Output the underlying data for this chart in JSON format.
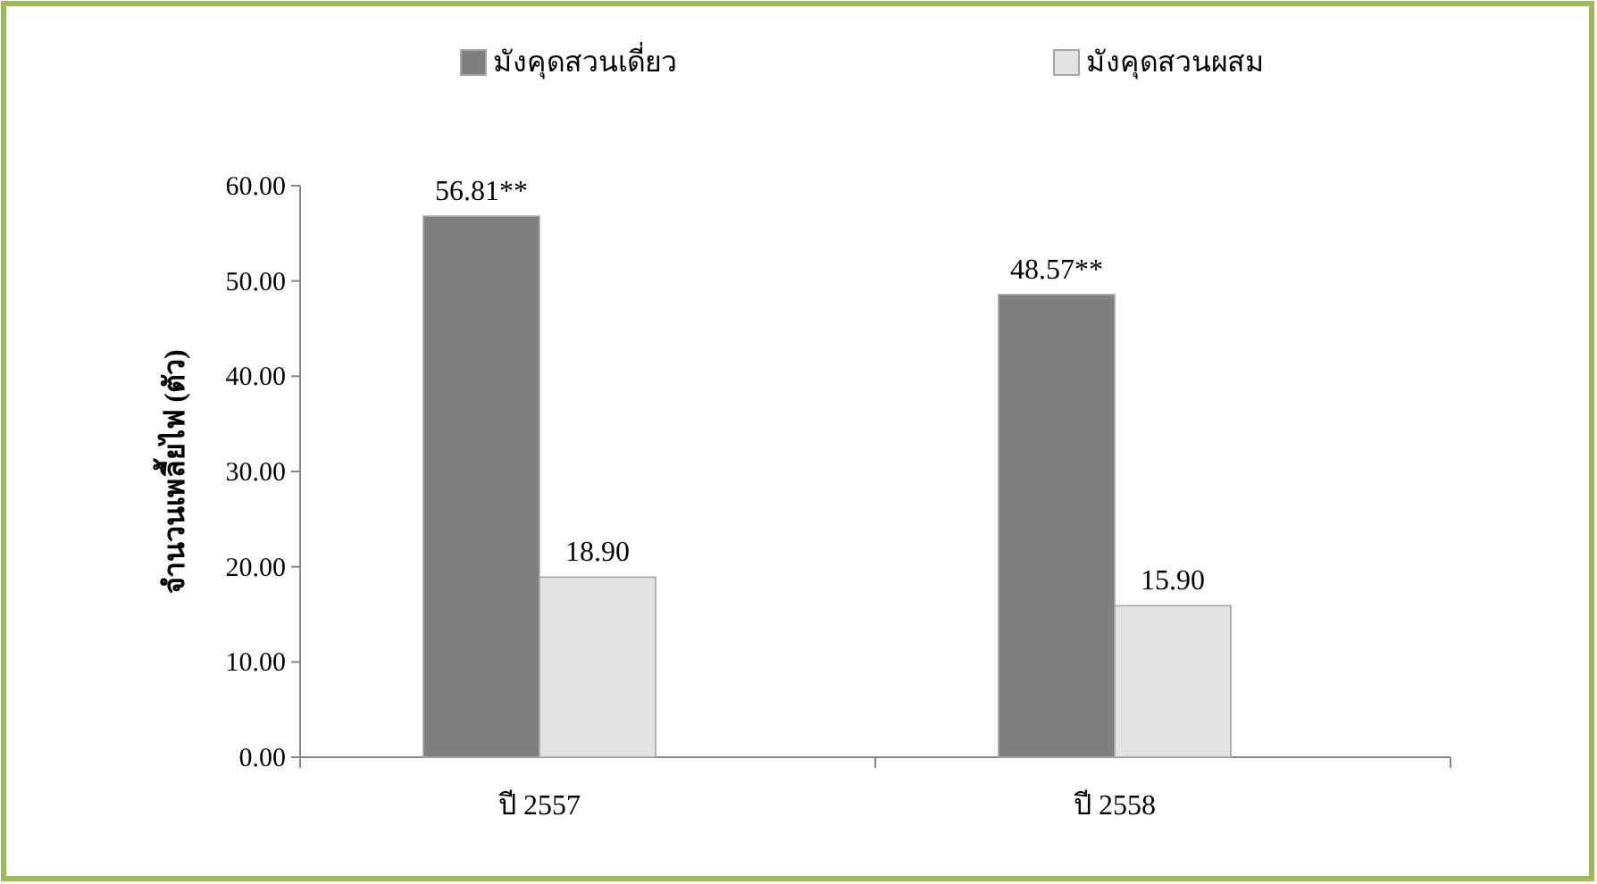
{
  "chart_data": {
    "type": "bar",
    "categories": [
      "ปี 2557",
      "ปี 2558"
    ],
    "ylabel": "จำนวนเพลี้ยไฟ (ตัว)",
    "series": [
      {
        "name": "มังคุดสวนเดี่ยว",
        "color": "#7f7f7f",
        "values": [
          56.81,
          48.57
        ],
        "value_labels": [
          "56.81**",
          "48.57**"
        ]
      },
      {
        "name": "มังคุดสวนผสม",
        "color": "#e3e3e3",
        "values": [
          18.9,
          15.9
        ],
        "value_labels": [
          "18.90",
          "15.90"
        ]
      }
    ],
    "ylim": [
      0,
      60
    ],
    "yticks": [
      {
        "value": 0,
        "label": "0.00"
      },
      {
        "value": 10,
        "label": "10.00"
      },
      {
        "value": 20,
        "label": "20.00"
      },
      {
        "value": 30,
        "label": "30.00"
      },
      {
        "value": 40,
        "label": "40.00"
      },
      {
        "value": 50,
        "label": "50.00"
      },
      {
        "value": 60,
        "label": "60.00"
      }
    ],
    "grid": false,
    "legend": "top"
  }
}
